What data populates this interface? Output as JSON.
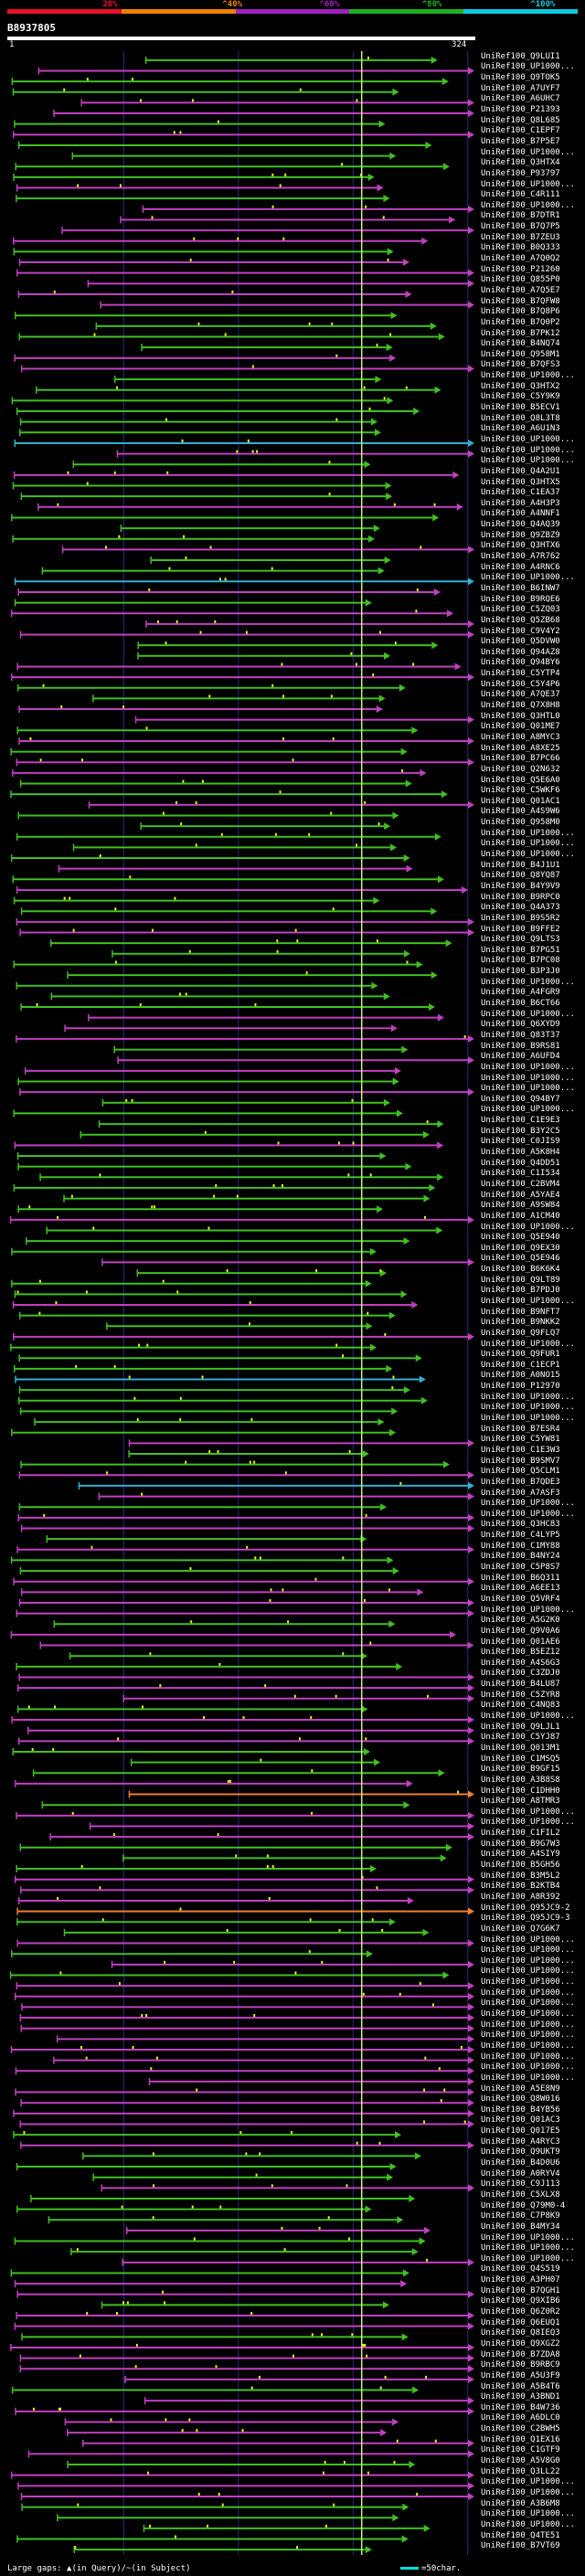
{
  "identity_scale": {
    "ticks": [
      "20%",
      "^40%",
      "^60%",
      "^80%",
      "^100%"
    ],
    "colors": [
      "#e8102a",
      "#f08000",
      "#a020c0",
      "#20b020",
      "#10c8e0"
    ]
  },
  "header": {
    "query_id": "B8937805",
    "start": "1",
    "end": "324"
  },
  "footer": {
    "large_gaps_text": "Large gaps: ▲(in Query)/~(in Subject)",
    "scale_text": "=50char."
  },
  "colors": {
    "green": "#40c020",
    "magenta": "#c040c0",
    "cyan": "#30b0d0",
    "orange": "#f08030",
    "marker": "#f0f000",
    "center_line": "#c8f080",
    "grid": "#2a2a7a"
  },
  "chart_data": {
    "type": "alignment-map",
    "title": "B8937805",
    "query_length": 324,
    "xlim": [
      1,
      324
    ],
    "hit_ids": [
      "UniRef100_Q9LUI1",
      "UniRef100_UP1000...",
      "UniRef100_Q9TOK5",
      "UniRef100_A7UYF7",
      "UniRef100_A6UHC7",
      "UniRef100_P21393",
      "UniRef100_Q8L685",
      "UniRef100_C1EPF7",
      "UniRef100_B7P5E7",
      "UniRef100_UP1000...",
      "UniRef100_Q3HTX4",
      "UniRef100_P93797",
      "UniRef100_UP1000...",
      "UniRef100_C4R111",
      "UniRef100_UP1000...",
      "UniRef100_B7DTR1",
      "UniRef100_B7Q7P5",
      "UniRef100_B7ZEU3",
      "UniRef100_B0Q333",
      "UniRef100_A7Q0Q2",
      "UniRef100_P21260",
      "UniRef100_Q855P0",
      "UniRef100_A7Q5E7",
      "UniRef100_B7QFW8",
      "UniRef100_B7Q8P6",
      "UniRef100_B7Q0P2",
      "UniRef100_B7PK12",
      "UniRef100_B4NQ74",
      "UniRef100_Q958M1",
      "UniRef100_B7QFS3",
      "UniRef100_UP1000...",
      "UniRef100_Q3HTX2",
      "UniRef100_C5Y9K9",
      "UniRef100_B5ECV1",
      "UniRef100_Q8L3T8",
      "UniRef100_A6U1N3",
      "UniRef100_UP1000...",
      "UniRef100_UP1000...",
      "UniRef100_UP1000...",
      "UniRef100_Q4A2U1",
      "UniRef100_Q3HTX5",
      "UniRef100_C1EA37",
      "UniRef100_A4H3P3",
      "UniRef100_A4NNF1",
      "UniRef100_Q4AQ39",
      "UniRef100_Q9ZBZ9",
      "UniRef100_Q3HTX6",
      "UniRef100_A7R762",
      "UniRef100_A4RNC6",
      "UniRef100_UP1000...",
      "UniRef100_B6INW7",
      "UniRef100_B9RQE6",
      "UniRef100_C5ZQ03",
      "UniRef100_Q5ZB68",
      "UniRef100_C9V4Y2",
      "UniRef100_Q5DVW0",
      "UniRef100_Q94AZ8",
      "UniRef100_Q94BY6",
      "UniRef100_C5YTP4",
      "UniRef100_C5Y4P6",
      "UniRef100_A7QE37",
      "UniRef100_Q7X8H8",
      "UniRef100_Q3HTL0",
      "UniRef100_Q01ME7",
      "UniRef100_A8MYC3",
      "UniRef100_A8XE25",
      "UniRef100_B7PC66",
      "UniRef100_Q2N632",
      "UniRef100_Q5E6A0",
      "UniRef100_C5WKF6",
      "UniRef100_Q01AC1",
      "UniRef100_A4S9W6",
      "UniRef100_Q958M0",
      "UniRef100_UP1000...",
      "UniRef100_UP1000...",
      "UniRef100_UP1000...",
      "UniRef100_B4J1U1",
      "UniRef100_Q8YQ87",
      "UniRef100_B4Y9V9",
      "UniRef100_B9RPC0",
      "UniRef100_Q4A373",
      "UniRef100_B9S5R2",
      "UniRef100_B9FFE2",
      "UniRef100_Q9LTS3",
      "UniRef100_B7PG51",
      "UniRef100_B7PC08",
      "UniRef100_B3P3J0",
      "UniRef100_UP1000...",
      "UniRef100_A4FGR9",
      "UniRef100_B6CT66",
      "UniRef100_UP1000...",
      "UniRef100_Q6XYD9",
      "UniRef100_Q83T37",
      "UniRef100_B9RS81",
      "UniRef100_A6UFD4",
      "UniRef100_UP1000...",
      "UniRef100_UP1000...",
      "UniRef100_UP1000...",
      "UniRef100_Q94BY7",
      "UniRef100_UP1000...",
      "UniRef100_C1E9E3",
      "UniRef100_B3Y2C5",
      "UniRef100_C0JIS9",
      "UniRef100_A5K8H4",
      "UniRef100_Q4DD51",
      "UniRef100_C1I534",
      "UniRef100_C2BVM4",
      "UniRef100_A5YAE4",
      "UniRef100_A9SW84",
      "UniRef100_A1CM40",
      "UniRef100_UP1000...",
      "UniRef100_Q5E940",
      "UniRef100_Q9EX30",
      "UniRef100_Q5E946",
      "UniRef100_B6K6K4",
      "UniRef100_Q9LT89",
      "UniRef100_B7PDJ0",
      "UniRef100_UP1000...",
      "UniRef100_B9NFT7",
      "UniRef100_B9NKK2",
      "UniRef100_Q9FLQ7",
      "UniRef100_UP1000...",
      "UniRef100_Q9FUR1",
      "UniRef100_C1ECP1",
      "UniRef100_A0NO15",
      "UniRef100_P12970",
      "UniRef100_UP1000...",
      "UniRef100_UP1000...",
      "UniRef100_UP1000...",
      "UniRef100_B7ESR4",
      "UniRef100_C5YW81",
      "UniRef100_C1E3W3",
      "UniRef100_B9SMV7",
      "UniRef100_Q5CLM1",
      "UniRef100_B7QDE3",
      "UniRef100_A7ASF3",
      "UniRef100_UP1000...",
      "UniRef100_UP1000...",
      "UniRef100_Q3HC83",
      "UniRef100_C4LYP5",
      "UniRef100_C1MY88",
      "UniRef100_B4NY24",
      "UniRef100_C5P8S7",
      "UniRef100_B6Q311",
      "UniRef100_A6EE13",
      "UniRef100_Q5VRF4",
      "UniRef100_UP1000...",
      "UniRef100_A5G2K0",
      "UniRef100_Q9V0A6",
      "UniRef100_Q01AE6",
      "UniRef100_B5EZ12",
      "UniRef100_A4S6G3",
      "UniRef100_C3ZDJ0",
      "UniRef100_B4LU87",
      "UniRef100_C5ZYR8",
      "UniRef100_C4NQ83",
      "UniRef100_UP1000...",
      "UniRef100_Q9LJL1",
      "UniRef100_C5YJ87",
      "UniRef100_Q013M1",
      "UniRef100_C1MSQ5",
      "UniRef100_B9GF15",
      "UniRef100_A3B8S8",
      "UniRef100_C1DHH0",
      "UniRef100_A8TMR3",
      "UniRef100_UP1000...",
      "UniRef100_UP1000...",
      "UniRef100_C1FIL2",
      "UniRef100_B9G7W3",
      "UniRef100_A4SIY9",
      "UniRef100_B5GH56",
      "UniRef100_B3M5L2",
      "UniRef100_B2KTB4",
      "UniRef100_A8R392",
      "UniRef100_Q95JC9-2",
      "UniRef100_Q95JC9-3",
      "UniRef100_Q7G6K7",
      "UniRef100_UP1000...",
      "UniRef100_UP1000...",
      "UniRef100_UP1000...",
      "UniRef100_UP1000...",
      "UniRef100_UP1000...",
      "UniRef100_UP1000...",
      "UniRef100_UP1000...",
      "UniRef100_UP1000...",
      "UniRef100_UP1000...",
      "UniRef100_UP1000...",
      "UniRef100_UP1000...",
      "UniRef100_UP1000...",
      "UniRef100_UP1000...",
      "UniRef100_UP1000...",
      "UniRef100_A5E8N9",
      "UniRef100_Q8W016",
      "UniRef100_B4YB56",
      "UniRef100_Q01AC3",
      "UniRef100_Q017E5",
      "UniRef100_A4RYC3",
      "UniRef100_Q9UKT9",
      "UniRef100_B4D0U6",
      "UniRef100_A0RYV4",
      "UniRef100_C9J113",
      "UniRef100_C5XLX8",
      "UniRef100_Q79M0-4",
      "UniRef100_C7P8K9",
      "UniRef100_B4MY34",
      "UniRef100_UP1000...",
      "UniRef100_UP1000...",
      "UniRef100_UP1000...",
      "UniRef100_Q4S519",
      "UniRef100_A3PH07",
      "UniRef100_B7QGH1",
      "UniRef100_Q9XIB6",
      "UniRef100_Q6Z0R2",
      "UniRef100_Q6EUQ1",
      "UniRef100_Q8IEQ3",
      "UniRef100_Q9XGZ2",
      "UniRef100_B7ZDA8",
      "UniRef100_B9RBC9",
      "UniRef100_A5U3F9",
      "UniRef100_A5B4T6",
      "UniRef100_A3BND1",
      "UniRef100_B4W736",
      "UniRef100_A6DLC0",
      "UniRef100_C2BWH5",
      "UniRef100_Q1EX16",
      "UniRef100_C1GTF9",
      "UniRef100_A5V8G0",
      "UniRef100_Q3LL22",
      "UniRef100_UP1000...",
      "UniRef100_UP1000...",
      "UniRef100_A3B6M8",
      "UniRef100_UP1000...",
      "UniRef100_UP1000...",
      "UniRef100_Q4TE51",
      "UniRef100_B7VT69"
    ]
  }
}
